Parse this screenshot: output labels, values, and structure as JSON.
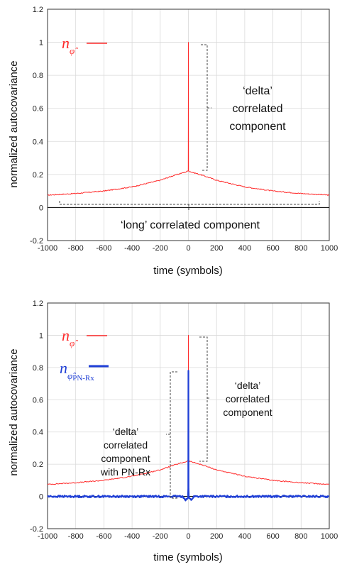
{
  "chart_data": [
    {
      "type": "line",
      "xlabel": "time (symbols)",
      "ylabel": "normalized autocovariance",
      "xlim": [
        -1000,
        1000
      ],
      "ylim": [
        -0.2,
        1.2
      ],
      "xticks": [
        "-1000",
        "-800",
        "-600",
        "-400",
        "-200",
        "0",
        "200",
        "400",
        "600",
        "800",
        "1000"
      ],
      "yticks": [
        "-0.2",
        "0",
        "0.2",
        "0.4",
        "0.6",
        "0.8",
        "1",
        "1.2"
      ],
      "grid": true,
      "legend_position": "top-left",
      "series": [
        {
          "name": "n_φ̂",
          "color": "#ff2a2a",
          "x": [
            -1000,
            -800,
            -600,
            -400,
            -200,
            -100,
            -20,
            -1,
            0,
            1,
            20,
            100,
            200,
            400,
            600,
            800,
            1000
          ],
          "y": [
            0.075,
            0.085,
            0.1,
            0.125,
            0.165,
            0.195,
            0.215,
            0.222,
            1.0,
            0.222,
            0.215,
            0.195,
            0.165,
            0.125,
            0.1,
            0.085,
            0.075
          ]
        }
      ],
      "annotations": {
        "delta": [
          "‘delta’",
          "correlated",
          "component"
        ],
        "long": "‘long’ correlated component"
      }
    },
    {
      "type": "line",
      "xlabel": "time (symbols)",
      "ylabel": "normalized autocovariance",
      "xlim": [
        -1000,
        1000
      ],
      "ylim": [
        -0.2,
        1.2
      ],
      "xticks": [
        "-1000",
        "-800",
        "-600",
        "-400",
        "-200",
        "0",
        "200",
        "400",
        "600",
        "800",
        "1000"
      ],
      "yticks": [
        "-0.2",
        "0",
        "0.2",
        "0.4",
        "0.6",
        "0.8",
        "1",
        "1.2"
      ],
      "grid": true,
      "legend_position": "top-left",
      "series": [
        {
          "name": "n_φ̂",
          "color": "#ff2a2a",
          "x": [
            -1000,
            -800,
            -600,
            -400,
            -200,
            -100,
            -20,
            -1,
            0,
            1,
            20,
            100,
            200,
            400,
            600,
            800,
            1000
          ],
          "y": [
            0.075,
            0.085,
            0.1,
            0.125,
            0.165,
            0.195,
            0.215,
            0.222,
            1.0,
            0.222,
            0.215,
            0.195,
            0.165,
            0.125,
            0.1,
            0.085,
            0.075
          ]
        },
        {
          "name": "n_φ̂ PN-Rx",
          "color": "#1f3fd6",
          "x": [
            -1000,
            -40,
            -30,
            -20,
            -10,
            -3,
            -1,
            0,
            1,
            3,
            10,
            20,
            30,
            40,
            1000
          ],
          "y": [
            0.0,
            0.0,
            -0.01,
            -0.02,
            -0.015,
            -0.01,
            0.05,
            0.78,
            0.05,
            -0.01,
            -0.015,
            -0.02,
            -0.01,
            0.0,
            0.0
          ]
        }
      ],
      "annotations": {
        "delta": [
          "‘delta’",
          "correlated",
          "component"
        ],
        "delta_pnrx": [
          "‘delta’",
          "correlated",
          "component",
          "with PN-Rx"
        ]
      }
    }
  ],
  "legend": {
    "top": [
      {
        "base": "n",
        "sub": "φ̂",
        "color": "#ff2a2a"
      }
    ],
    "bottom": [
      {
        "base": "n",
        "sub": "φ̂",
        "color": "#ff2a2a"
      },
      {
        "base": "n",
        "sub": "φ̂",
        "sub2": "PN-Rx",
        "color": "#1f3fd6"
      }
    ]
  }
}
